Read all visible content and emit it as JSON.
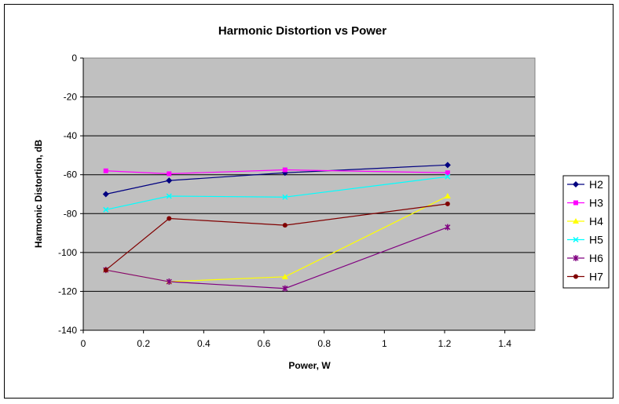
{
  "chart_data": {
    "type": "line",
    "title": "Harmonic Distortion vs Power",
    "xlabel": "Power, W",
    "ylabel": "Harmonic Distortion, dB",
    "xlim": [
      0,
      1.5
    ],
    "ylim": [
      -140,
      0
    ],
    "xticks": [
      0,
      0.2,
      0.4,
      0.6,
      0.8,
      1,
      1.2,
      1.4
    ],
    "xtick_labels": [
      "0",
      "0.2",
      "0.4",
      "0.6",
      "0.8",
      "1",
      "1.2",
      "1.4"
    ],
    "yticks": [
      0,
      -20,
      -40,
      -60,
      -80,
      -100,
      -120,
      -140
    ],
    "ytick_labels": [
      "0",
      "-20",
      "-40",
      "-60",
      "-80",
      "-100",
      "-120",
      "-140"
    ],
    "grid": "horizontal",
    "plot_background": "#c0c0c0",
    "legend_position": "right",
    "x": [
      0.075,
      0.285,
      0.67,
      1.21
    ],
    "series": [
      {
        "name": "H2",
        "values": [
          -70,
          -63,
          -59,
          -55
        ],
        "color": "#000080",
        "marker": "diamond"
      },
      {
        "name": "H3",
        "values": [
          -58,
          -59.5,
          -57.5,
          -59
        ],
        "color": "#ff00ff",
        "marker": "square"
      },
      {
        "name": "H4",
        "values": [
          -109,
          -115,
          -112.5,
          -71
        ],
        "color": "#ffff00",
        "marker": "triangle"
      },
      {
        "name": "H5",
        "values": [
          -78,
          -71,
          -71.5,
          -61
        ],
        "color": "#00ffff",
        "marker": "x"
      },
      {
        "name": "H6",
        "values": [
          -109,
          -115,
          -118.5,
          -87
        ],
        "color": "#800080",
        "marker": "star"
      },
      {
        "name": "H7",
        "values": [
          -109,
          -82.5,
          -86,
          -75
        ],
        "color": "#800000",
        "marker": "circle"
      }
    ]
  }
}
